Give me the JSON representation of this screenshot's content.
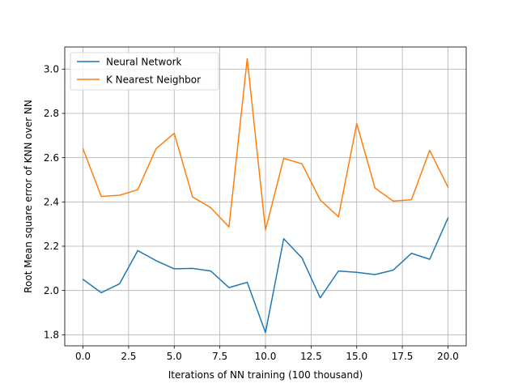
{
  "chart_data": {
    "type": "line",
    "xlabel": "Iterations of NN training (100 thousand)",
    "ylabel": "Root Mean square error of KNN over NN",
    "xlim": [
      -1.0,
      21.0
    ],
    "ylim": [
      1.75,
      3.1
    ],
    "x_ticks": [
      0,
      2.5,
      5,
      7.5,
      10,
      12.5,
      15,
      17.5,
      20
    ],
    "x_tick_labels": [
      "0.0",
      "2.5",
      "5.0",
      "7.5",
      "10.0",
      "12.5",
      "15.0",
      "17.5",
      "20.0"
    ],
    "y_ticks": [
      1.8,
      2.0,
      2.2,
      2.4,
      2.6,
      2.8,
      3.0
    ],
    "y_tick_labels": [
      "1.8",
      "2.0",
      "2.2",
      "2.4",
      "2.6",
      "2.8",
      "3.0"
    ],
    "grid": true,
    "legend_position": "top-left",
    "x": [
      0,
      1,
      2,
      3,
      4,
      5,
      6,
      7,
      8,
      9,
      10,
      11,
      12,
      13,
      14,
      15,
      16,
      17,
      18,
      19,
      20
    ],
    "series": [
      {
        "name": "Neural Network",
        "color": "#1f77b4",
        "values": [
          2.05,
          1.99,
          2.03,
          2.18,
          2.135,
          2.098,
          2.1,
          2.088,
          2.013,
          2.037,
          1.81,
          2.234,
          2.147,
          1.967,
          2.088,
          2.082,
          2.072,
          2.092,
          2.168,
          2.141,
          2.327
        ]
      },
      {
        "name": "K Nearest Neighbor",
        "color": "#ff7f0e",
        "values": [
          2.64,
          2.425,
          2.43,
          2.455,
          2.64,
          2.71,
          2.423,
          2.374,
          2.287,
          3.047,
          2.273,
          2.597,
          2.572,
          2.409,
          2.333,
          2.754,
          2.463,
          2.404,
          2.41,
          2.633,
          2.467
        ]
      }
    ]
  }
}
